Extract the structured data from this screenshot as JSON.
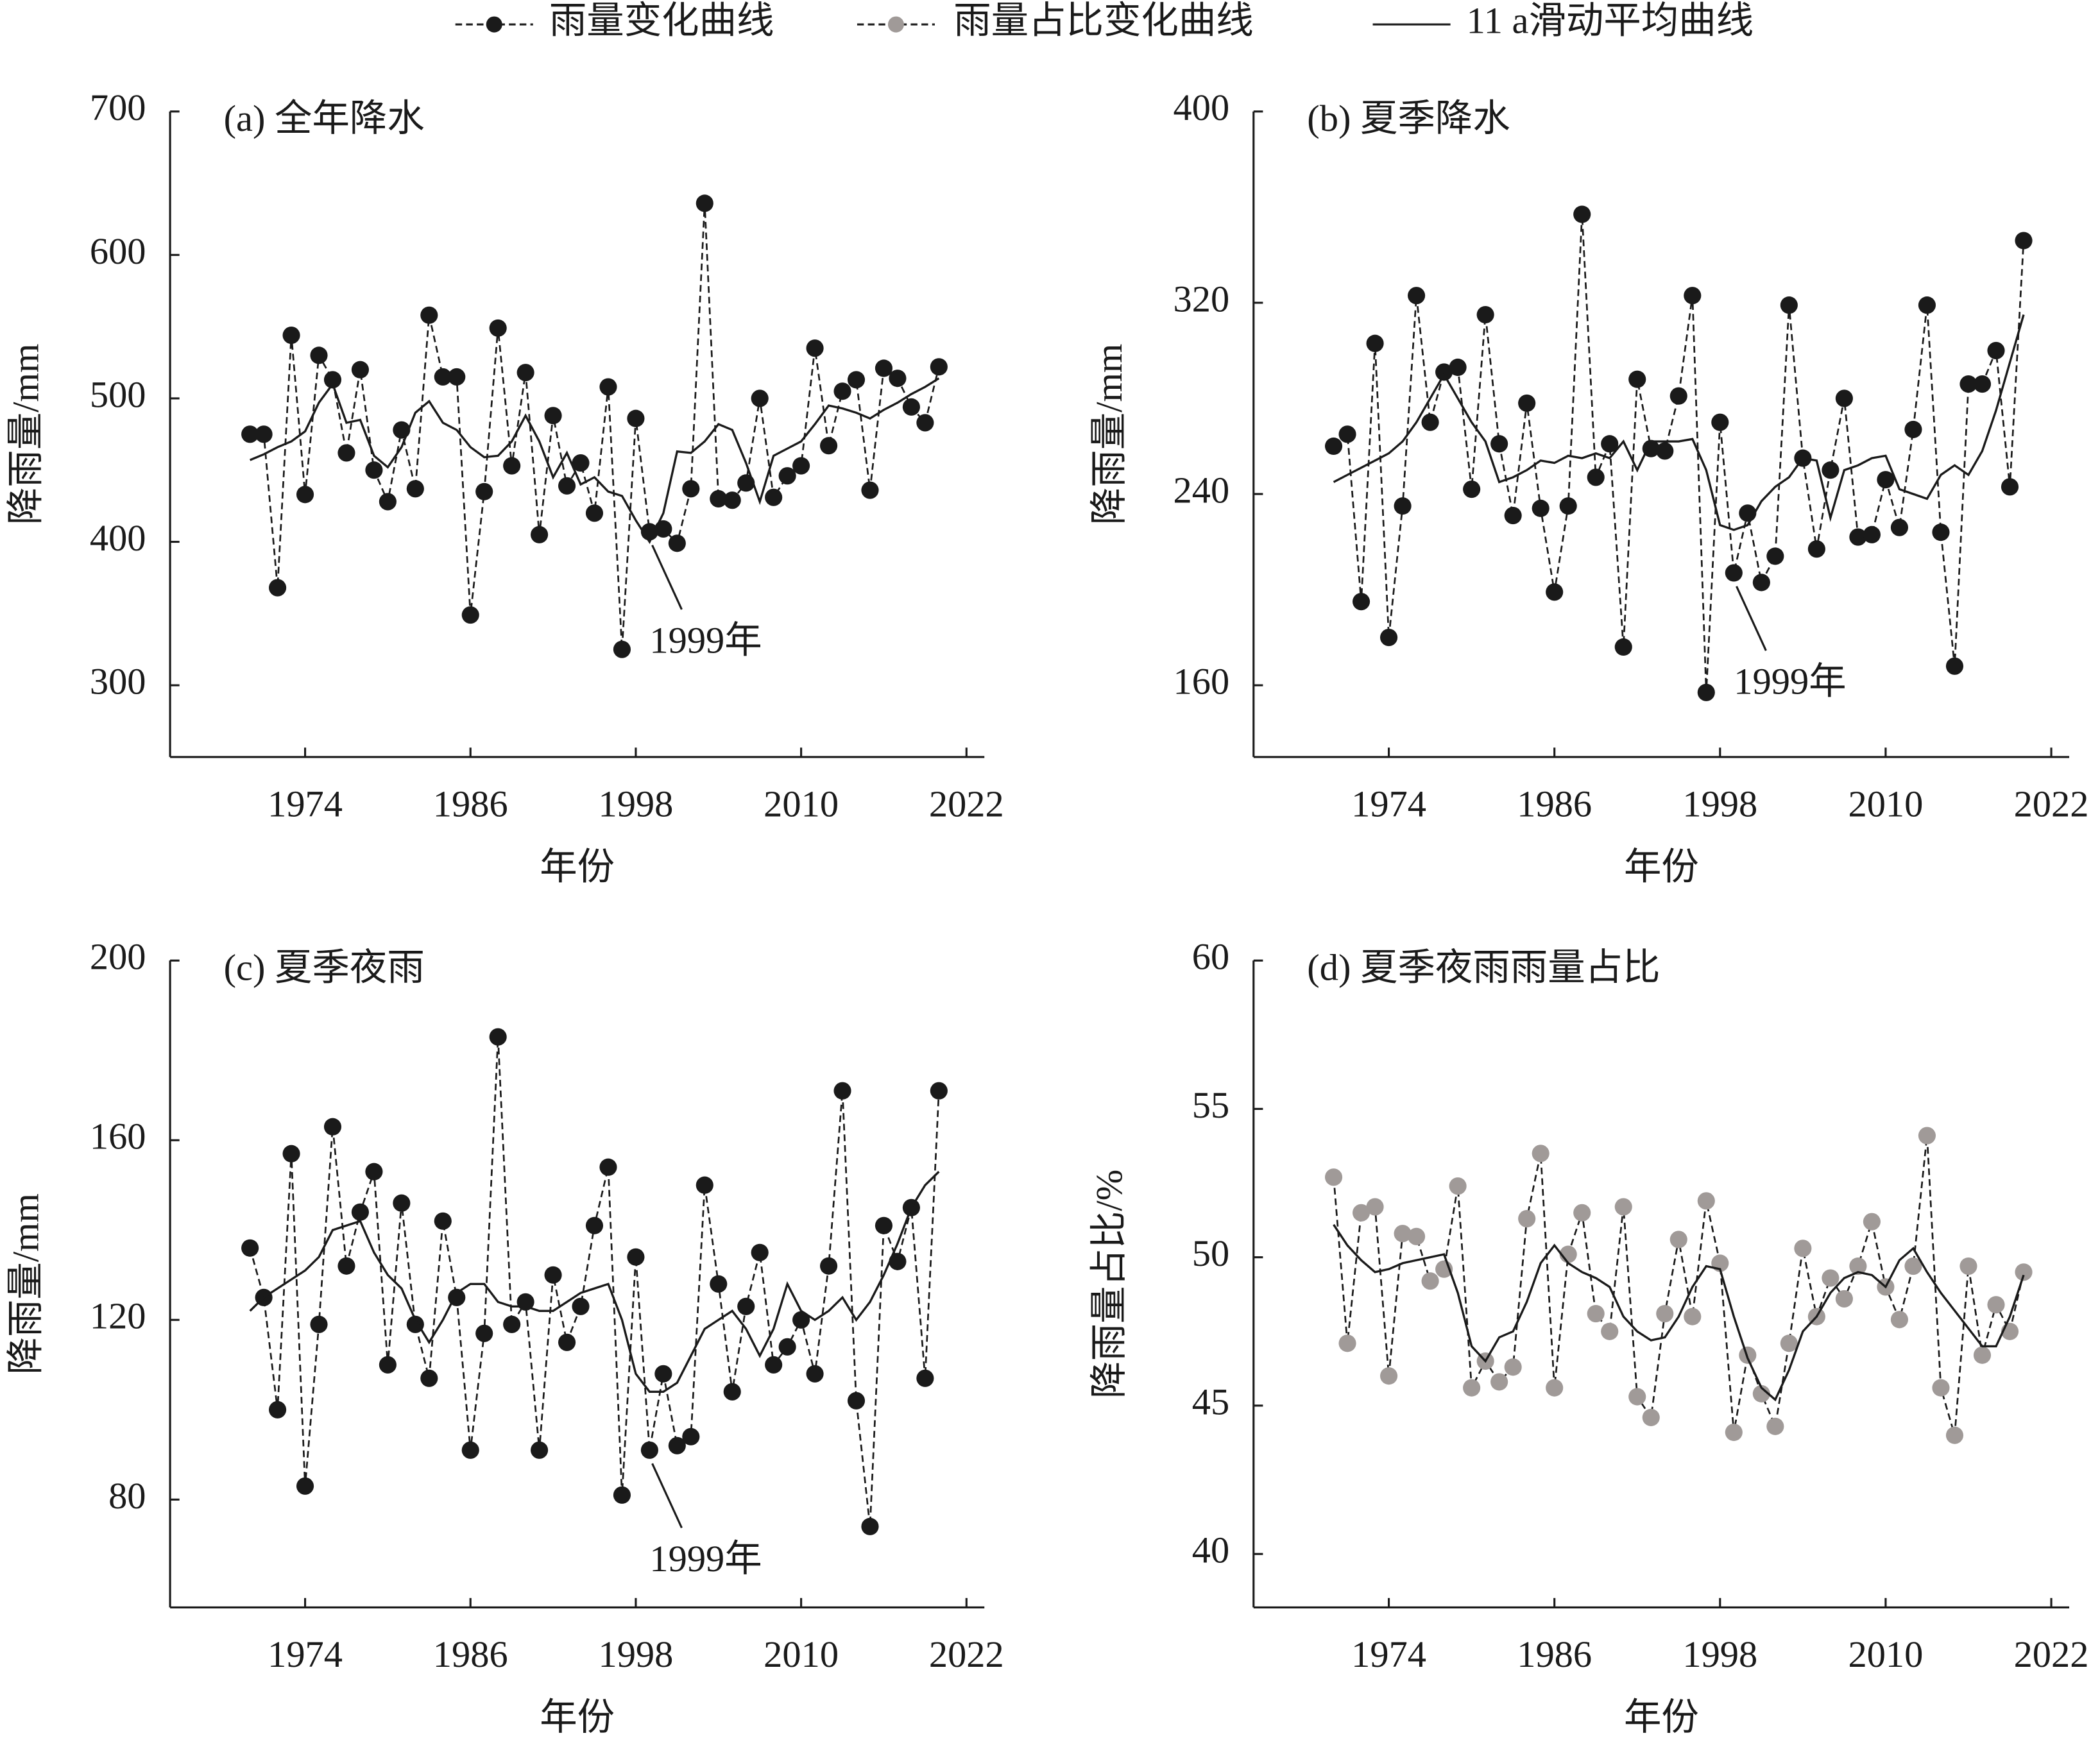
{
  "legend": [
    {
      "name": "雨量变化曲线",
      "color": "#1a1a1a",
      "style": "dashed-dot"
    },
    {
      "name": "雨量占比变化曲线",
      "color": "#a09a98",
      "style": "dashed-dot"
    },
    {
      "name": "11 a滑动平均曲线",
      "color": "#1a1a1a",
      "style": "solid"
    }
  ],
  "chart_data": [
    {
      "type": "line",
      "title": "(a) 全年降水",
      "xlabel": "年份",
      "ylabel": "降雨量/mm",
      "x": [
        1970,
        1971,
        1972,
        1973,
        1974,
        1975,
        1976,
        1977,
        1978,
        1979,
        1980,
        1981,
        1982,
        1983,
        1984,
        1985,
        1986,
        1987,
        1988,
        1989,
        1990,
        1991,
        1992,
        1993,
        1994,
        1995,
        1996,
        1997,
        1998,
        1999,
        2000,
        2001,
        2002,
        2003,
        2004,
        2005,
        2006,
        2007,
        2008,
        2009,
        2010,
        2011,
        2012,
        2013,
        2014,
        2015,
        2016,
        2017,
        2018,
        2019,
        2020
      ],
      "xlim": [
        1964.2,
        2023.3
      ],
      "xticks": [
        1974,
        1986,
        1998,
        2010,
        2022
      ],
      "ylim": [
        250,
        700
      ],
      "yticks": [
        300,
        400,
        500,
        600,
        700
      ],
      "annotation": {
        "text": "1999年",
        "x": 1999
      },
      "series": [
        {
          "color": "#1a1a1a",
          "style": "dashed-dot",
          "values": [
            475,
            475,
            368,
            544,
            433,
            530,
            513,
            462,
            520,
            450,
            428,
            478,
            437,
            558,
            515,
            515,
            349,
            435,
            549,
            453,
            518,
            405,
            488,
            439,
            455,
            420,
            508,
            325,
            486,
            407,
            409,
            399,
            437,
            636,
            430,
            429,
            441,
            500,
            431,
            446,
            453,
            535,
            467,
            505,
            513,
            436,
            521,
            514,
            494,
            483,
            522
          ]
        },
        {
          "color": "#1a1a1a",
          "style": "solid",
          "values": [
            457,
            461,
            466,
            470,
            477,
            497,
            510,
            483,
            485,
            460,
            452,
            466,
            490,
            498,
            483,
            478,
            466,
            459,
            460,
            470,
            488,
            470,
            445,
            462,
            440,
            445,
            435,
            432,
            415,
            400,
            420,
            463,
            462,
            470,
            482,
            478,
            455,
            428,
            460,
            465,
            470,
            482,
            495,
            493,
            490,
            486,
            492,
            497,
            503,
            508,
            514
          ]
        }
      ]
    },
    {
      "type": "line",
      "title": "(b) 夏季降水",
      "xlabel": "年份",
      "ylabel": "降雨量/mm",
      "x": [
        1970,
        1971,
        1972,
        1973,
        1974,
        1975,
        1976,
        1977,
        1978,
        1979,
        1980,
        1981,
        1982,
        1983,
        1984,
        1985,
        1986,
        1987,
        1988,
        1989,
        1990,
        1991,
        1992,
        1993,
        1994,
        1995,
        1996,
        1997,
        1998,
        1999,
        2000,
        2001,
        2002,
        2003,
        2004,
        2005,
        2006,
        2007,
        2008,
        2009,
        2010,
        2011,
        2012,
        2013,
        2014,
        2015,
        2016,
        2017,
        2018,
        2019,
        2020
      ],
      "xlim": [
        1964.2,
        2023.3
      ],
      "xticks": [
        1974,
        1986,
        1998,
        2010,
        2022
      ],
      "ylim": [
        130,
        400
      ],
      "yticks": [
        160,
        240,
        320,
        400
      ],
      "annotation": {
        "text": "1999年",
        "x": 1999
      },
      "series": [
        {
          "color": "#1a1a1a",
          "style": "dashed-dot",
          "values": [
            260,
            265,
            195,
            303,
            180,
            235,
            323,
            270,
            291,
            293,
            242,
            315,
            261,
            231,
            278,
            234,
            199,
            235,
            357,
            247,
            261,
            176,
            288,
            259,
            258,
            281,
            323,
            157,
            270,
            207,
            232,
            203,
            214,
            319,
            255,
            217,
            250,
            280,
            222,
            223,
            246,
            226,
            267,
            319,
            224,
            168,
            286,
            286,
            300,
            243,
            346
          ]
        },
        {
          "color": "#1a1a1a",
          "style": "solid",
          "values": [
            245,
            248,
            251,
            254,
            257,
            262,
            270,
            280,
            290,
            280,
            270,
            262,
            245,
            247,
            250,
            254,
            253,
            256,
            255,
            257,
            255,
            262,
            250,
            262,
            262,
            262,
            263,
            250,
            227,
            225,
            227,
            237,
            243,
            247,
            255,
            254,
            230,
            250,
            252,
            255,
            256,
            242,
            240,
            238,
            248,
            252,
            248,
            258,
            275,
            295,
            315
          ]
        }
      ]
    },
    {
      "type": "line",
      "title": "(c) 夏季夜雨",
      "xlabel": "年份",
      "ylabel": "降雨量/mm",
      "x": [
        1970,
        1971,
        1972,
        1973,
        1974,
        1975,
        1976,
        1977,
        1978,
        1979,
        1980,
        1981,
        1982,
        1983,
        1984,
        1985,
        1986,
        1987,
        1988,
        1989,
        1990,
        1991,
        1992,
        1993,
        1994,
        1995,
        1996,
        1997,
        1998,
        1999,
        2000,
        2001,
        2002,
        2003,
        2004,
        2005,
        2006,
        2007,
        2008,
        2009,
        2010,
        2011,
        2012,
        2013,
        2014,
        2015,
        2016,
        2017,
        2018,
        2019,
        2020
      ],
      "xlim": [
        1964.2,
        2023.3
      ],
      "xticks": [
        1974,
        1986,
        1998,
        2010,
        2022
      ],
      "ylim": [
        56,
        200
      ],
      "yticks": [
        80,
        120,
        160,
        200
      ],
      "annotation": {
        "text": "1999年",
        "x": 1999
      },
      "series": [
        {
          "color": "#1a1a1a",
          "style": "dashed-dot",
          "values": [
            136,
            125,
            100,
            157,
            83,
            119,
            163,
            132,
            144,
            153,
            110,
            146,
            119,
            107,
            142,
            125,
            91,
            117,
            183,
            119,
            124,
            91,
            130,
            115,
            123,
            141,
            154,
            81,
            134,
            91,
            108,
            92,
            94,
            150,
            128,
            104,
            123,
            135,
            110,
            114,
            120,
            108,
            132,
            171,
            102,
            74,
            141,
            133,
            145,
            107,
            171
          ]
        },
        {
          "color": "#1a1a1a",
          "style": "solid",
          "values": [
            122,
            125,
            127,
            129,
            131,
            134,
            140,
            141,
            142,
            135,
            130,
            127,
            120,
            115,
            120,
            126,
            128,
            128,
            124,
            123,
            123,
            122,
            122,
            124,
            126,
            127,
            128,
            120,
            108,
            104,
            104,
            106,
            112,
            118,
            120,
            122,
            118,
            112,
            118,
            128,
            122,
            120,
            122,
            125,
            120,
            124,
            130,
            137,
            145,
            150,
            153
          ]
        }
      ]
    },
    {
      "type": "line",
      "title": "(d) 夏季夜雨雨量占比",
      "xlabel": "年份",
      "ylabel": "降雨量占比/%",
      "x": [
        1970,
        1971,
        1972,
        1973,
        1974,
        1975,
        1976,
        1977,
        1978,
        1979,
        1980,
        1981,
        1982,
        1983,
        1984,
        1985,
        1986,
        1987,
        1988,
        1989,
        1990,
        1991,
        1992,
        1993,
        1994,
        1995,
        1996,
        1997,
        1998,
        1999,
        2000,
        2001,
        2002,
        2003,
        2004,
        2005,
        2006,
        2007,
        2008,
        2009,
        2010,
        2011,
        2012,
        2013,
        2014,
        2015,
        2016,
        2017,
        2018,
        2019,
        2020
      ],
      "xlim": [
        1964.2,
        2023.3
      ],
      "xticks": [
        1974,
        1986,
        1998,
        2010,
        2022
      ],
      "ylim": [
        38.2,
        60
      ],
      "yticks": [
        40,
        45,
        50,
        55,
        60
      ],
      "series": [
        {
          "color": "#a09a98",
          "style": "dashed-dot",
          "values": [
            52.7,
            47.1,
            51.5,
            51.7,
            46.0,
            50.8,
            50.7,
            49.2,
            49.6,
            52.4,
            45.6,
            46.5,
            45.8,
            46.3,
            51.3,
            53.5,
            45.6,
            50.1,
            51.5,
            48.1,
            47.5,
            51.7,
            45.3,
            44.6,
            48.1,
            50.6,
            48.0,
            51.9,
            49.8,
            44.1,
            46.7,
            45.4,
            44.3,
            47.1,
            50.3,
            48.0,
            49.3,
            48.6,
            49.7,
            51.2,
            49.0,
            47.9,
            49.7,
            54.1,
            45.6,
            44.0,
            49.7,
            46.7,
            48.4,
            47.5,
            49.5
          ]
        },
        {
          "color": "#1a1a1a",
          "style": "solid",
          "values": [
            51.1,
            50.4,
            49.9,
            49.5,
            49.6,
            49.8,
            49.9,
            50.0,
            50.1,
            48.8,
            47.0,
            46.5,
            47.3,
            47.5,
            48.5,
            49.8,
            50.4,
            49.8,
            49.5,
            49.3,
            49.0,
            48.0,
            47.5,
            47.2,
            47.3,
            48.0,
            49.0,
            49.7,
            49.6,
            48.0,
            46.6,
            45.6,
            45.2,
            46.2,
            47.5,
            48.0,
            48.8,
            49.3,
            49.5,
            49.4,
            49.0,
            49.9,
            50.3,
            49.5,
            48.8,
            48.2,
            47.6,
            47.0,
            47.0,
            48.0,
            49.4
          ]
        }
      ]
    }
  ]
}
